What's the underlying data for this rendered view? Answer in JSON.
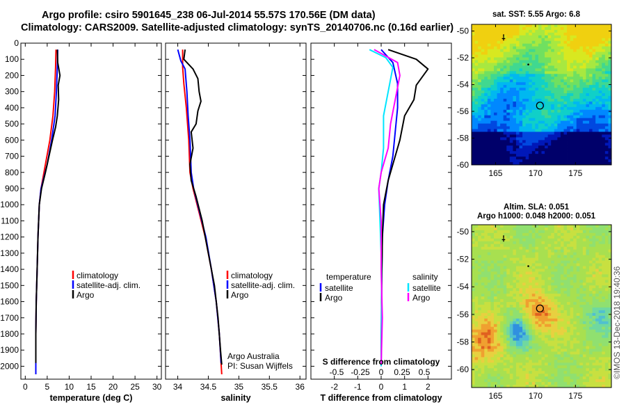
{
  "header": {
    "line1": "Argo profile: csiro 5901645_238 06-Jul-2014 55.57S 170.56E (DM data)",
    "line2": "Climatology: CARS2009. Satellite-adjusted climatology: synTS_20140706.nc (0.16d earlier)"
  },
  "colors": {
    "climatology": "#ff0000",
    "satellite": "#0000ff",
    "argo": "#000000",
    "sat_s": "#00e5ff",
    "argo_s": "#ff00ff"
  },
  "chart_data": [
    {
      "type": "line",
      "xlabel": "temperature (deg C)",
      "xlim": [
        -1,
        31
      ],
      "xticks": [
        0,
        5,
        10,
        15,
        20,
        25,
        30
      ],
      "ylim": [
        2080,
        0
      ],
      "yticks": [
        0,
        100,
        200,
        300,
        400,
        500,
        600,
        700,
        800,
        900,
        1000,
        1100,
        1200,
        1300,
        1400,
        1500,
        1600,
        1700,
        1800,
        1900,
        2000
      ],
      "legend": [
        "climatology",
        "satellite-adj. clim.",
        "Argo"
      ],
      "series": [
        {
          "name": "climatology",
          "color": "#ff0000",
          "points": [
            [
              7.0,
              40
            ],
            [
              6.9,
              150
            ],
            [
              6.7,
              300
            ],
            [
              6.3,
              450
            ],
            [
              5.6,
              600
            ],
            [
              4.6,
              750
            ],
            [
              3.6,
              900
            ],
            [
              3.2,
              1000
            ],
            [
              2.9,
              1200
            ],
            [
              2.7,
              1400
            ],
            [
              2.5,
              1600
            ],
            [
              2.4,
              1800
            ],
            [
              2.4,
              2050
            ]
          ]
        },
        {
          "name": "satellite-adj. clim.",
          "color": "#0000ff",
          "points": [
            [
              7.4,
              40
            ],
            [
              7.3,
              150
            ],
            [
              7.1,
              300
            ],
            [
              6.8,
              450
            ],
            [
              6.0,
              600
            ],
            [
              5.0,
              750
            ],
            [
              3.6,
              900
            ],
            [
              3.2,
              1000
            ],
            [
              2.9,
              1200
            ],
            [
              2.7,
              1400
            ],
            [
              2.5,
              1600
            ],
            [
              2.4,
              1800
            ],
            [
              2.4,
              2050
            ]
          ]
        },
        {
          "name": "Argo",
          "color": "#000000",
          "points": [
            [
              7.3,
              40
            ],
            [
              7.4,
              120
            ],
            [
              7.9,
              200
            ],
            [
              7.5,
              260
            ],
            [
              7.6,
              350
            ],
            [
              7.3,
              450
            ],
            [
              6.9,
              520
            ],
            [
              6.2,
              600
            ],
            [
              5.4,
              700
            ],
            [
              4.6,
              800
            ],
            [
              3.7,
              900
            ],
            [
              3.2,
              1000
            ],
            [
              2.9,
              1200
            ],
            [
              2.7,
              1400
            ],
            [
              2.5,
              1600
            ],
            [
              2.4,
              1800
            ],
            [
              2.4,
              1980
            ]
          ]
        }
      ]
    },
    {
      "type": "line",
      "xlabel": "salinity",
      "xlim": [
        33.8,
        36.1
      ],
      "xticks": [
        34,
        34.5,
        35,
        35.5,
        36
      ],
      "ylim": [
        2080,
        0
      ],
      "legend": [
        "climatology",
        "satellite-adj. clim.",
        "Argo"
      ],
      "annotation": [
        "Argo Australia",
        "PI: Susan Wijffels"
      ],
      "series": [
        {
          "name": "climatology",
          "color": "#ff0000",
          "points": [
            [
              34.08,
              40
            ],
            [
              34.08,
              150
            ],
            [
              34.1,
              250
            ],
            [
              34.14,
              400
            ],
            [
              34.18,
              600
            ],
            [
              34.2,
              800
            ],
            [
              34.25,
              900
            ],
            [
              34.35,
              1050
            ],
            [
              34.45,
              1200
            ],
            [
              34.55,
              1400
            ],
            [
              34.63,
              1600
            ],
            [
              34.68,
              1800
            ],
            [
              34.72,
              2050
            ]
          ]
        },
        {
          "name": "satellite-adj. clim.",
          "color": "#0000ff",
          "points": [
            [
              34.0,
              40
            ],
            [
              34.05,
              110
            ],
            [
              34.12,
              160
            ],
            [
              34.15,
              300
            ],
            [
              34.17,
              450
            ],
            [
              34.2,
              600
            ],
            [
              34.22,
              800
            ],
            [
              34.26,
              900
            ],
            [
              34.36,
              1050
            ],
            [
              34.46,
              1200
            ],
            [
              34.55,
              1400
            ],
            [
              34.63,
              1600
            ],
            [
              34.68,
              1800
            ],
            [
              34.71,
              1980
            ]
          ]
        },
        {
          "name": "Argo",
          "color": "#000000",
          "points": [
            [
              34.12,
              40
            ],
            [
              34.1,
              100
            ],
            [
              34.25,
              160
            ],
            [
              34.33,
              220
            ],
            [
              34.35,
              300
            ],
            [
              34.38,
              360
            ],
            [
              34.33,
              420
            ],
            [
              34.3,
              500
            ],
            [
              34.22,
              550
            ],
            [
              34.25,
              650
            ],
            [
              34.2,
              750
            ],
            [
              34.22,
              850
            ],
            [
              34.3,
              950
            ],
            [
              34.4,
              1100
            ],
            [
              34.5,
              1300
            ],
            [
              34.6,
              1500
            ],
            [
              34.66,
              1700
            ],
            [
              34.7,
              1900
            ],
            [
              34.72,
              1990
            ]
          ]
        }
      ]
    },
    {
      "type": "line",
      "xlabel": "T difference from climatology",
      "xlim": [
        -3,
        3
      ],
      "xticks": [
        -2,
        -1,
        0,
        1,
        2
      ],
      "top_axis_label": "S difference from climatology",
      "top_ticks": [
        "-0.5",
        "-0.25",
        "0",
        "0.25",
        "0.5"
      ],
      "ylim": [
        2080,
        0
      ],
      "legend_left_title": "temperature",
      "legend_right_title": "salinity",
      "legend": [
        "satellite",
        "Argo",
        "satellite",
        "Argo"
      ],
      "series": [
        {
          "name": "satellite",
          "color": "#0000ff",
          "points": [
            [
              0.0,
              40
            ],
            [
              0.5,
              120
            ],
            [
              0.7,
              250
            ],
            [
              0.7,
              400
            ],
            [
              0.6,
              550
            ],
            [
              0.5,
              700
            ],
            [
              0.3,
              850
            ],
            [
              0.15,
              1000
            ],
            [
              0.05,
              1200
            ],
            [
              0.02,
              1500
            ],
            [
              0.0,
              2000
            ]
          ]
        },
        {
          "name": "Argo",
          "color": "#000000",
          "points": [
            [
              0.3,
              40
            ],
            [
              1.5,
              100
            ],
            [
              2.0,
              160
            ],
            [
              1.5,
              260
            ],
            [
              1.4,
              350
            ],
            [
              1.0,
              450
            ],
            [
              0.8,
              600
            ],
            [
              0.6,
              700
            ],
            [
              0.3,
              850
            ],
            [
              0.1,
              1000
            ],
            [
              0.05,
              1200
            ],
            [
              0.02,
              1500
            ],
            [
              0.0,
              1980
            ]
          ]
        },
        {
          "name": "satellite",
          "color": "#00e5ff",
          "points": [
            [
              -0.5,
              40
            ],
            [
              0.2,
              90
            ],
            [
              0.5,
              150
            ],
            [
              0.3,
              300
            ],
            [
              0.1,
              450
            ],
            [
              0.1,
              650
            ],
            [
              0.0,
              800
            ],
            [
              -0.1,
              900
            ],
            [
              -0.05,
              1100
            ],
            [
              0.0,
              1300
            ],
            [
              0.02,
              1600
            ],
            [
              0.0,
              2000
            ]
          ]
        },
        {
          "name": "Argo",
          "color": "#ff00ff",
          "points": [
            [
              -0.3,
              40
            ],
            [
              0.7,
              120
            ],
            [
              0.8,
              200
            ],
            [
              0.6,
              350
            ],
            [
              0.4,
              500
            ],
            [
              0.3,
              650
            ],
            [
              0.0,
              800
            ],
            [
              -0.1,
              900
            ],
            [
              0.0,
              1100
            ],
            [
              0.0,
              1400
            ],
            [
              0.05,
              1700
            ],
            [
              0.0,
              1990
            ]
          ]
        }
      ]
    },
    {
      "type": "heatmap",
      "title": "sat. SST: 5.55 Argo: 6.8",
      "xticks": [
        165,
        170,
        175
      ],
      "yticks": [
        -50,
        -52,
        -54,
        -56,
        -58,
        -60
      ],
      "xlim": [
        162,
        179.5
      ],
      "ylim": [
        -60,
        -49.5
      ],
      "profile_marker": [
        170.56,
        -55.57
      ]
    },
    {
      "type": "heatmap",
      "title_line1": "Altim. SLA: 0.051",
      "title_line2": "Argo h1000: 0.048 h2000: 0.051",
      "xticks": [
        165,
        170,
        175
      ],
      "yticks": [
        -50,
        -52,
        -54,
        -56,
        -58,
        -60
      ],
      "xlim": [
        162,
        179.5
      ],
      "ylim": [
        -61.3,
        -49.5
      ],
      "profile_marker": [
        170.56,
        -55.57
      ]
    }
  ],
  "credit": "©IMOS 13-Dec-2018 19:40:36"
}
